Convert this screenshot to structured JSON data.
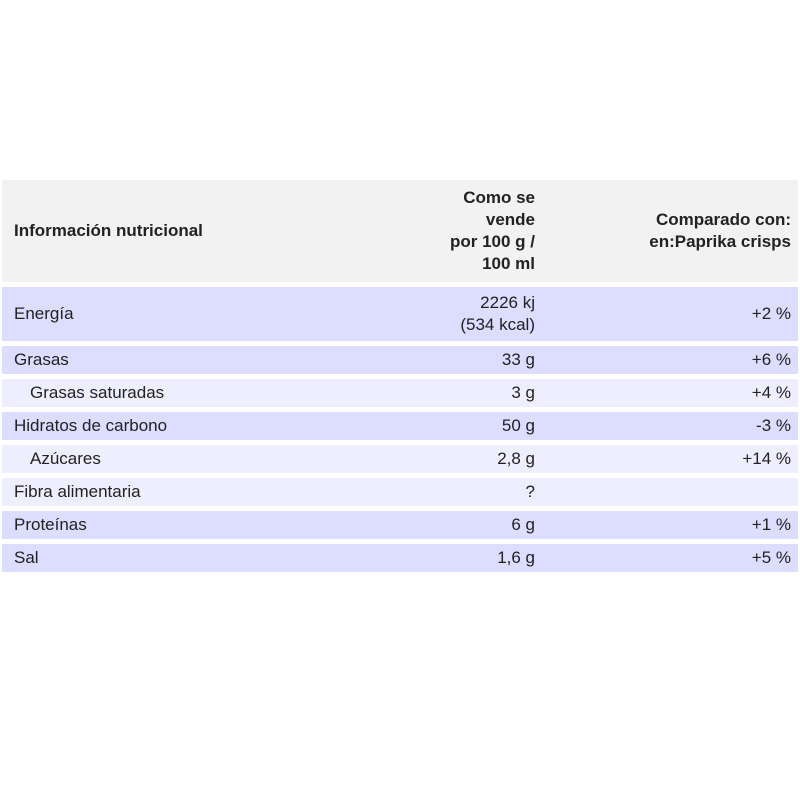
{
  "header": {
    "col_name": "Información nutricional",
    "col_value_lines": [
      "Como se",
      "vende",
      "por 100 g /",
      "100 ml"
    ],
    "col_compare_lines": [
      "Comparado con:",
      "en:Paprika crisps"
    ]
  },
  "rows": [
    {
      "name": "Energía",
      "value_lines": [
        "2226 kj",
        "(534 kcal)"
      ],
      "compare": "+2 %",
      "sub": false
    },
    {
      "name": "Grasas",
      "value": "33 g",
      "compare": "+6 %",
      "sub": false
    },
    {
      "name": "Grasas saturadas",
      "value": "3 g",
      "compare": "+4 %",
      "sub": true
    },
    {
      "name": "Hidratos de carbono",
      "value": "50 g",
      "compare": "-3 %",
      "sub": false
    },
    {
      "name": "Azúcares",
      "value": "2,8 g",
      "compare": "+14 %",
      "sub": true
    },
    {
      "name": "Fibra alimentaria",
      "value": "?",
      "compare": "",
      "sub": false
    },
    {
      "name": "Proteínas",
      "value": "6 g",
      "compare": "+1 %",
      "sub": false
    },
    {
      "name": "Sal",
      "value": "1,6 g",
      "compare": "+5 %",
      "sub": false
    }
  ],
  "colors": {
    "header_bg": "#f2f2f2",
    "row_bg": "#ddddff",
    "subrow_bg": "#eeeeff"
  }
}
